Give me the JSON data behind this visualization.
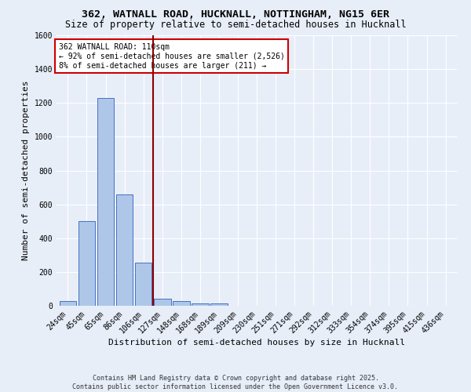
{
  "title_line1": "362, WATNALL ROAD, HUCKNALL, NOTTINGHAM, NG15 6ER",
  "title_line2": "Size of property relative to semi-detached houses in Hucknall",
  "xlabel": "Distribution of semi-detached houses by size in Hucknall",
  "ylabel": "Number of semi-detached properties",
  "bin_labels": [
    "24sqm",
    "45sqm",
    "65sqm",
    "86sqm",
    "106sqm",
    "127sqm",
    "148sqm",
    "168sqm",
    "189sqm",
    "209sqm",
    "230sqm",
    "251sqm",
    "271sqm",
    "292sqm",
    "312sqm",
    "333sqm",
    "354sqm",
    "374sqm",
    "395sqm",
    "415sqm",
    "436sqm"
  ],
  "bar_values": [
    30,
    500,
    1230,
    660,
    255,
    42,
    28,
    15,
    12,
    0,
    0,
    0,
    0,
    0,
    0,
    0,
    0,
    0,
    0,
    0,
    0
  ],
  "bar_color": "#aec6e8",
  "bar_edge_color": "#4472c4",
  "bg_color": "#e8eef8",
  "grid_color": "#ffffff",
  "vline_color": "#8b0000",
  "annotation_text": "362 WATNALL ROAD: 110sqm\n← 92% of semi-detached houses are smaller (2,526)\n8% of semi-detached houses are larger (211) →",
  "annotation_box_color": "#ffffff",
  "annotation_box_edge": "#cc0000",
  "ylim": [
    0,
    1600
  ],
  "yticks": [
    0,
    200,
    400,
    600,
    800,
    1000,
    1200,
    1400,
    1600
  ],
  "footer_line1": "Contains HM Land Registry data © Crown copyright and database right 2025.",
  "footer_line2": "Contains public sector information licensed under the Open Government Licence v3.0.",
  "title_fontsize": 9.5,
  "subtitle_fontsize": 8.5,
  "axis_label_fontsize": 8,
  "tick_fontsize": 7,
  "annotation_fontsize": 7,
  "footer_fontsize": 6
}
